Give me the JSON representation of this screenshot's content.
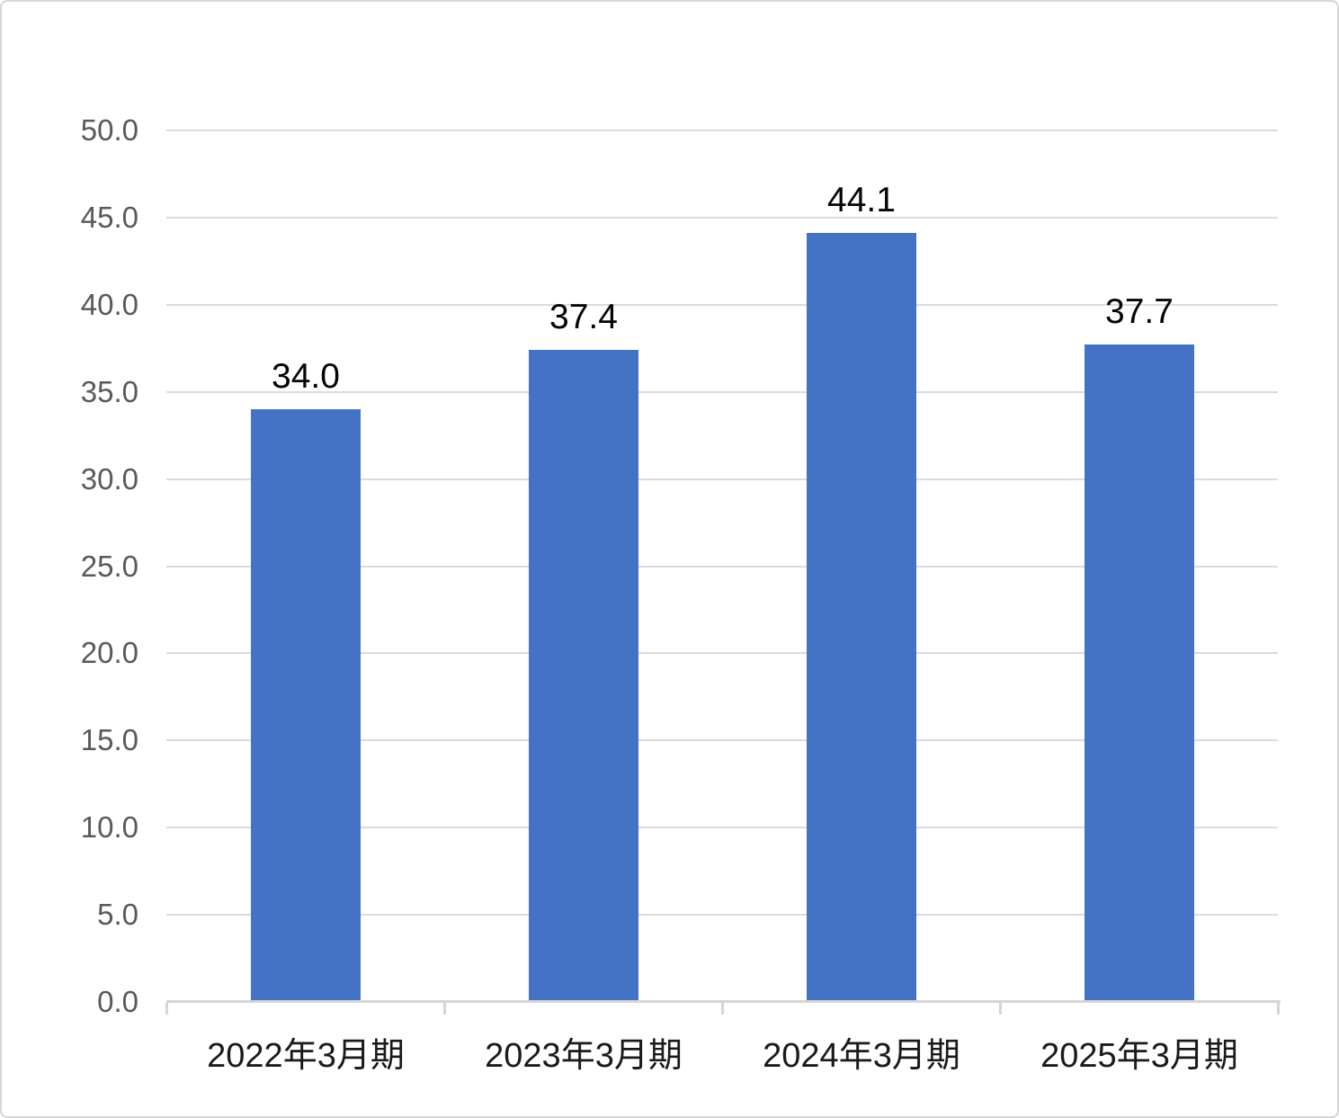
{
  "chart_data": {
    "type": "bar",
    "title": "",
    "xlabel": "",
    "ylabel": "",
    "categories": [
      "2022年3月期",
      "2023年3月期",
      "2024年3月期",
      "2025年3月期"
    ],
    "values": [
      34.0,
      37.4,
      44.1,
      37.7
    ],
    "value_labels": [
      "34.0",
      "37.4",
      "44.1",
      "37.7"
    ],
    "ylim": [
      0,
      50
    ],
    "ytick_step": 5,
    "y_tick_labels": [
      "0.0",
      "5.0",
      "10.0",
      "15.0",
      "20.0",
      "25.0",
      "30.0",
      "35.0",
      "40.0",
      "45.0",
      "50.0"
    ],
    "grid": true,
    "legend": false,
    "colors": {
      "bar": "#4472C4",
      "gridline": "#DBDBDB",
      "axis_line": "#D6D6D6",
      "tick": "#D6D6D6",
      "y_label": "#595959",
      "x_label": "#1a1a1a",
      "value_label": "#050505",
      "background": "#ffffff",
      "frame_border": "#d6d6d6"
    }
  }
}
